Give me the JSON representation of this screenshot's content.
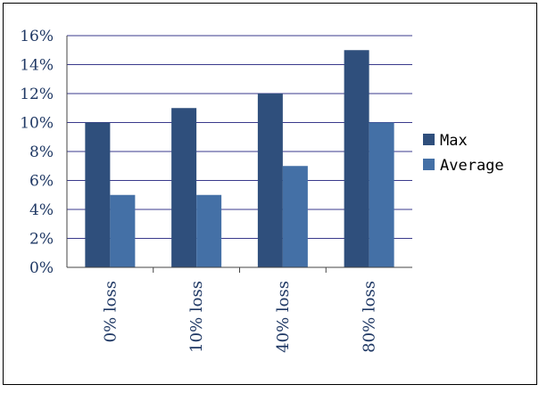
{
  "chart_data": {
    "type": "bar",
    "categories": [
      "0% loss",
      "10% loss",
      "40% loss",
      "80% loss"
    ],
    "series": [
      {
        "name": "Max",
        "values": [
          10,
          11,
          12,
          15
        ],
        "color": "#2f4f7c"
      },
      {
        "name": "Average",
        "values": [
          5,
          5,
          7,
          10
        ],
        "color": "#4470a6"
      }
    ],
    "yticks": [
      "0%",
      "2%",
      "4%",
      "6%",
      "8%",
      "10%",
      "12%",
      "14%",
      "16%"
    ],
    "ylim": [
      0,
      16
    ],
    "grid": true,
    "legend": "right"
  }
}
